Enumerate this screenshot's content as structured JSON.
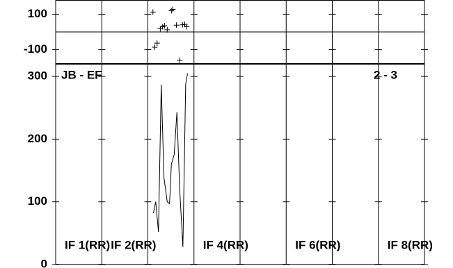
{
  "chart_data": [
    {
      "type": "scatter",
      "marker": "plus",
      "color": "#000000",
      "xlim": [
        0,
        8
      ],
      "xticks": [
        0,
        1,
        2,
        3,
        4,
        5,
        6,
        7,
        8
      ],
      "ylim": [
        -180,
        180
      ],
      "yticks": [
        -100,
        100
      ],
      "hline": 0,
      "x": [
        2.11,
        2.15,
        2.2,
        2.27,
        2.32,
        2.36,
        2.42,
        2.51,
        2.54,
        2.62,
        2.69,
        2.75,
        2.8,
        2.84
      ],
      "values": [
        112,
        -86,
        -63,
        18,
        30,
        35,
        12,
        120,
        127,
        38,
        -160,
        40,
        43,
        30
      ]
    },
    {
      "type": "line",
      "color": "#000000",
      "title": "JB - EF",
      "annotation": "2 - 3",
      "categories": [
        "IF 1(RR)",
        "IF 2(RR)",
        null,
        "IF 4(RR)",
        null,
        "IF 6(RR)",
        null,
        "IF 8(RR)"
      ],
      "xlim": [
        0,
        8
      ],
      "xticks": [
        0,
        1,
        2,
        3,
        4,
        5,
        6,
        7,
        8
      ],
      "ylim": [
        0,
        320
      ],
      "yticks": [
        0,
        100,
        200,
        300
      ],
      "x": [
        2.12,
        2.17,
        2.23,
        2.29,
        2.35,
        2.42,
        2.47,
        2.51,
        2.57,
        2.63,
        2.69,
        2.76,
        2.82,
        2.86
      ],
      "values": [
        82,
        100,
        52,
        287,
        138,
        100,
        97,
        160,
        175,
        243,
        120,
        28,
        287,
        305
      ]
    }
  ]
}
